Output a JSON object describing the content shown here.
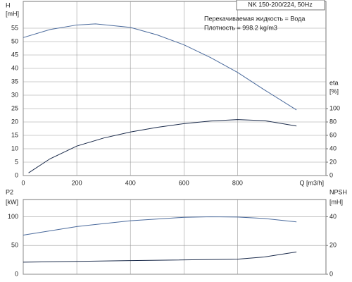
{
  "chart_data": [
    {
      "type": "line",
      "title": "NK 150-200/224, 50Hz",
      "annotations": [
        "Перекачиваемая жидкость = Вода",
        "Плотность = 998.2 kg/m3"
      ],
      "ylabel": [
        "H",
        "[mH]"
      ],
      "y2label": [
        "eta",
        "[%]"
      ],
      "xlabel": "Q [m3/h]",
      "xlim": [
        0,
        1130
      ],
      "xticks": [
        0,
        200,
        400,
        600,
        800
      ],
      "ylim": [
        0,
        65
      ],
      "yticks": [
        0,
        5,
        10,
        15,
        20,
        25,
        30,
        35,
        40,
        45,
        50,
        55
      ],
      "y2lim": [
        0,
        260
      ],
      "y2ticks": [
        0,
        20,
        40,
        60,
        80,
        100
      ],
      "grid": true,
      "series": [
        {
          "name": "H",
          "color": "#4a6a9c",
          "x": [
            0,
            100,
            200,
            270,
            400,
            500,
            600,
            700,
            800,
            900,
            1020
          ],
          "values": [
            51.5,
            54.5,
            56.2,
            56.6,
            55.3,
            52.5,
            48.8,
            44,
            38.5,
            32,
            24.5
          ]
        },
        {
          "name": "eta",
          "color": "#1a2a4a",
          "axis": "y2",
          "x": [
            20,
            100,
            200,
            300,
            400,
            500,
            600,
            700,
            800,
            900,
            1020
          ],
          "values": [
            4,
            25,
            44,
            56,
            65,
            72,
            77.5,
            81.5,
            83.5,
            82,
            74
          ]
        }
      ]
    },
    {
      "type": "line",
      "ylabel": [
        "P2",
        "[kW]"
      ],
      "y2label": [
        "NPSH",
        "[mH]"
      ],
      "xlim": [
        0,
        1130
      ],
      "xticks": [
        0,
        200,
        400,
        600,
        800
      ],
      "ylim": [
        0,
        130
      ],
      "yticks": [
        0,
        50,
        100
      ],
      "y2lim": [
        0,
        52
      ],
      "y2ticks": [
        0,
        20,
        40
      ],
      "grid": true,
      "series": [
        {
          "name": "P2",
          "color": "#4a6a9c",
          "x": [
            0,
            200,
            400,
            600,
            700,
            800,
            900,
            1020
          ],
          "values": [
            68,
            83,
            93,
            99,
            100,
            99.5,
            97,
            91
          ]
        },
        {
          "name": "NPSH",
          "color": "#1a2a4a",
          "axis": "y2",
          "x": [
            0,
            400,
            800,
            900,
            1020
          ],
          "values": [
            8.4,
            9.5,
            10.5,
            12,
            15.5
          ]
        }
      ]
    }
  ]
}
